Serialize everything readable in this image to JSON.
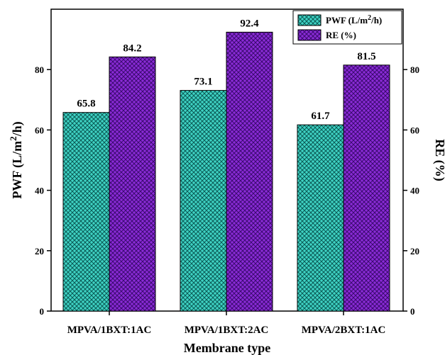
{
  "chart_data": {
    "type": "bar",
    "categories": [
      "MPVA/1BXT:1AC",
      "MPVA/1BXT:2AC",
      "MPVA/2BXT:1AC"
    ],
    "series": [
      {
        "name": "PWF (L/m²/h)",
        "legend_text": "PWF (L/m",
        "legend_sup": "2",
        "legend_tail": "/h)",
        "values": [
          65.8,
          73.1,
          61.7
        ],
        "data_labels": [
          "65.8",
          "73.1",
          "61.7"
        ],
        "color": "#3fd3c4",
        "pattern_color": "#0b5a55"
      },
      {
        "name": "RE (%)",
        "legend_text": "RE (%)",
        "values": [
          84.2,
          92.4,
          81.5
        ],
        "data_labels": [
          "84.2",
          "92.4",
          "81.5"
        ],
        "color": "#8a2bd6",
        "pattern_color": "#3a0a6e"
      }
    ],
    "xlabel": "Membrane type",
    "ylabel_left_main": "PWF (L/m",
    "ylabel_left_sup": "2",
    "ylabel_left_tail": "/h)",
    "ylabel_right": "RE (%)",
    "ylim": [
      0,
      100
    ],
    "yticks": [
      0,
      20,
      40,
      60,
      80
    ],
    "ytick_labels": [
      "0",
      "20",
      "40",
      "60",
      "80"
    ],
    "grid": false,
    "legend_position": "top-right"
  }
}
